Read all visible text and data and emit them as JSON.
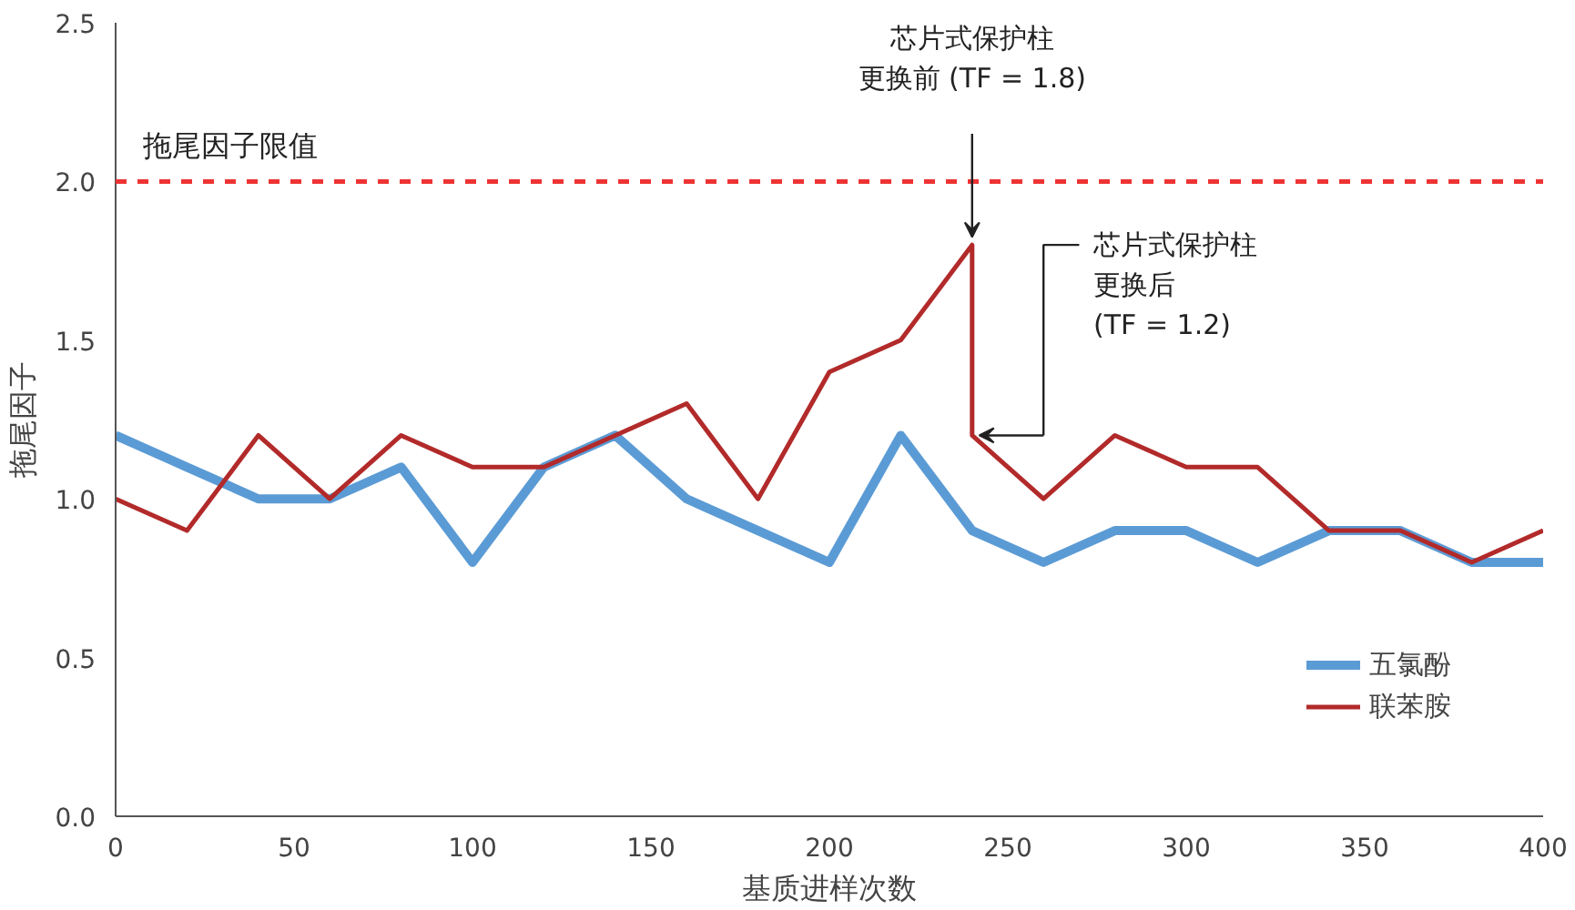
{
  "chart_data": {
    "type": "line",
    "xlabel": "基质进样次数",
    "ylabel": "拖尾因子",
    "xlim": [
      0,
      400
    ],
    "xticks": [
      0,
      50,
      100,
      150,
      200,
      250,
      300,
      350,
      400
    ],
    "ylim": [
      0,
      2.5
    ],
    "yticks": [
      {
        "value": 0,
        "label": "0.0"
      },
      {
        "value": 0.5,
        "label": "0.5"
      },
      {
        "value": 1,
        "label": "1.0"
      },
      {
        "value": 1.5,
        "label": "1.5"
      },
      {
        "value": 2,
        "label": "2.0"
      },
      {
        "value": 2.5,
        "label": "2.5"
      }
    ],
    "grid": false,
    "legend": "bottom right",
    "marker": "none",
    "line_style": "solid",
    "series": [
      {
        "name": "五氯酚",
        "color": "#5b9bd5",
        "x": [
          0,
          20,
          40,
          60,
          80,
          100,
          120,
          140,
          160,
          180,
          200,
          220,
          240,
          260,
          280,
          300,
          320,
          340,
          360,
          380,
          400
        ],
        "values": [
          1.2,
          1.1,
          1.0,
          1.0,
          1.1,
          0.8,
          1.1,
          1.2,
          1.0,
          0.9,
          0.8,
          1.2,
          0.9,
          0.8,
          0.9,
          0.9,
          0.8,
          0.9,
          0.9,
          0.8,
          0.8
        ]
      },
      {
        "name": "联苯胺",
        "color": "#b22a2a",
        "x": [
          0,
          20,
          40,
          60,
          80,
          100,
          120,
          140,
          160,
          180,
          200,
          220,
          240,
          240,
          260,
          280,
          300,
          320,
          340,
          360,
          380,
          400
        ],
        "values": [
          1.0,
          0.9,
          1.2,
          1.0,
          1.2,
          1.1,
          1.1,
          1.2,
          1.3,
          1.0,
          1.4,
          1.5,
          1.8,
          1.2,
          1.0,
          1.2,
          1.1,
          1.1,
          0.9,
          0.9,
          0.8,
          0.9
        ]
      }
    ],
    "ref_lines": [
      {
        "axis": "y",
        "value": 2.0,
        "label": "拖尾因子限值",
        "color": "#ee3333",
        "line_style": "dashed"
      }
    ],
    "annotations": [
      "芯片式保护柱",
      "更换前 (TF = 1.8)",
      "芯片式保护柱",
      "更换后",
      "(TF = 1.2)"
    ]
  }
}
